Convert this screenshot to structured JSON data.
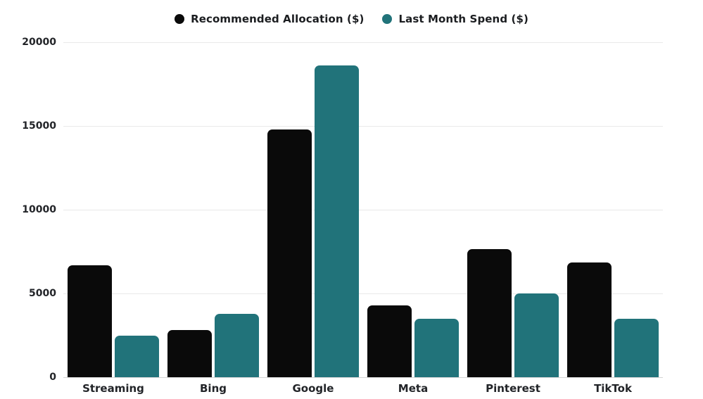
{
  "chart_data": {
    "type": "bar",
    "categories": [
      "Streaming",
      "Bing",
      "Google",
      "Meta",
      "Pinterest",
      "TikTok"
    ],
    "series": [
      {
        "name": "Recommended Allocation ($)",
        "color": "#0a0a0a",
        "values": [
          6700,
          2800,
          14800,
          4300,
          7650,
          6850
        ]
      },
      {
        "name": "Last Month Spend ($)",
        "color": "#21737a",
        "values": [
          2500,
          3800,
          18600,
          3500,
          5000,
          3500
        ]
      }
    ],
    "xlabel": "",
    "ylabel": "",
    "ylim": [
      0,
      20000
    ],
    "yticks": [
      0,
      5000,
      10000,
      15000,
      20000
    ],
    "ytick_labels": [
      "0",
      "5000",
      "10000",
      "15000",
      "20000"
    ],
    "grid": true,
    "legend_position": "top-center"
  },
  "style": {
    "background": "#ffffff",
    "grid_color": "#e9e9e9",
    "baseline_color": "#d4d4d4",
    "label_color": "#222428"
  }
}
